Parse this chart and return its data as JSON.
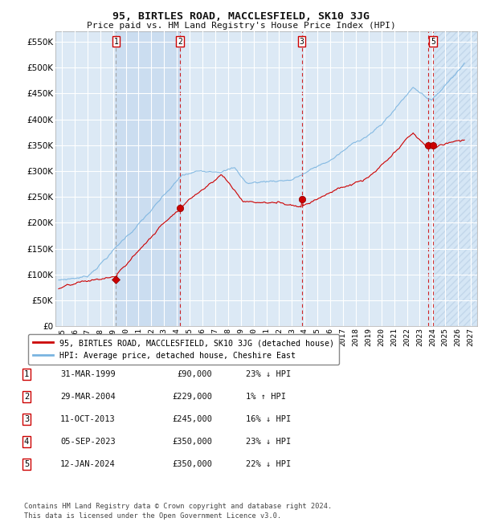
{
  "title": "95, BIRTLES ROAD, MACCLESFIELD, SK10 3JG",
  "subtitle": "Price paid vs. HM Land Registry's House Price Index (HPI)",
  "ylim": [
    0,
    570000
  ],
  "yticks": [
    0,
    50000,
    100000,
    150000,
    200000,
    250000,
    300000,
    350000,
    400000,
    450000,
    500000,
    550000
  ],
  "xlim_start": 1994.5,
  "xlim_end": 2027.5,
  "background_color": "#ffffff",
  "plot_bg_color": "#dce9f5",
  "grid_color": "#ffffff",
  "hpi_color": "#7ab4e0",
  "price_color": "#cc0000",
  "sale_marker_color": "#cc0000",
  "vline_color_gray": "#999999",
  "vline_color_red": "#cc0000",
  "legend_label_price": "95, BIRTLES ROAD, MACCLESFIELD, SK10 3JG (detached house)",
  "legend_label_hpi": "HPI: Average price, detached house, Cheshire East",
  "table_entries": [
    {
      "num": 1,
      "date": "31-MAR-1999",
      "price": "£90,000",
      "pct": "23%",
      "dir": "↓",
      "hpi": "HPI"
    },
    {
      "num": 2,
      "date": "29-MAR-2004",
      "price": "£229,000",
      "pct": "1%",
      "dir": "↑",
      "hpi": "HPI"
    },
    {
      "num": 3,
      "date": "11-OCT-2013",
      "price": "£245,000",
      "pct": "16%",
      "dir": "↓",
      "hpi": "HPI"
    },
    {
      "num": 4,
      "date": "05-SEP-2023",
      "price": "£350,000",
      "pct": "23%",
      "dir": "↓",
      "hpi": "HPI"
    },
    {
      "num": 5,
      "date": "12-JAN-2024",
      "price": "£350,000",
      "pct": "22%",
      "dir": "↓",
      "hpi": "HPI"
    }
  ],
  "sales": [
    {
      "year": 1999.24,
      "price": 90000,
      "marker": "D"
    },
    {
      "year": 2004.24,
      "price": 229000,
      "marker": "o"
    },
    {
      "year": 2013.78,
      "price": 245000,
      "marker": "o"
    },
    {
      "year": 2023.68,
      "price": 350000,
      "marker": "o"
    },
    {
      "year": 2024.04,
      "price": 350000,
      "marker": "o"
    }
  ],
  "footnote": "Contains HM Land Registry data © Crown copyright and database right 2024.\nThis data is licensed under the Open Government Licence v3.0.",
  "hatch_region_start": 2024.15,
  "shown_labels": [
    1,
    2,
    3,
    5
  ]
}
